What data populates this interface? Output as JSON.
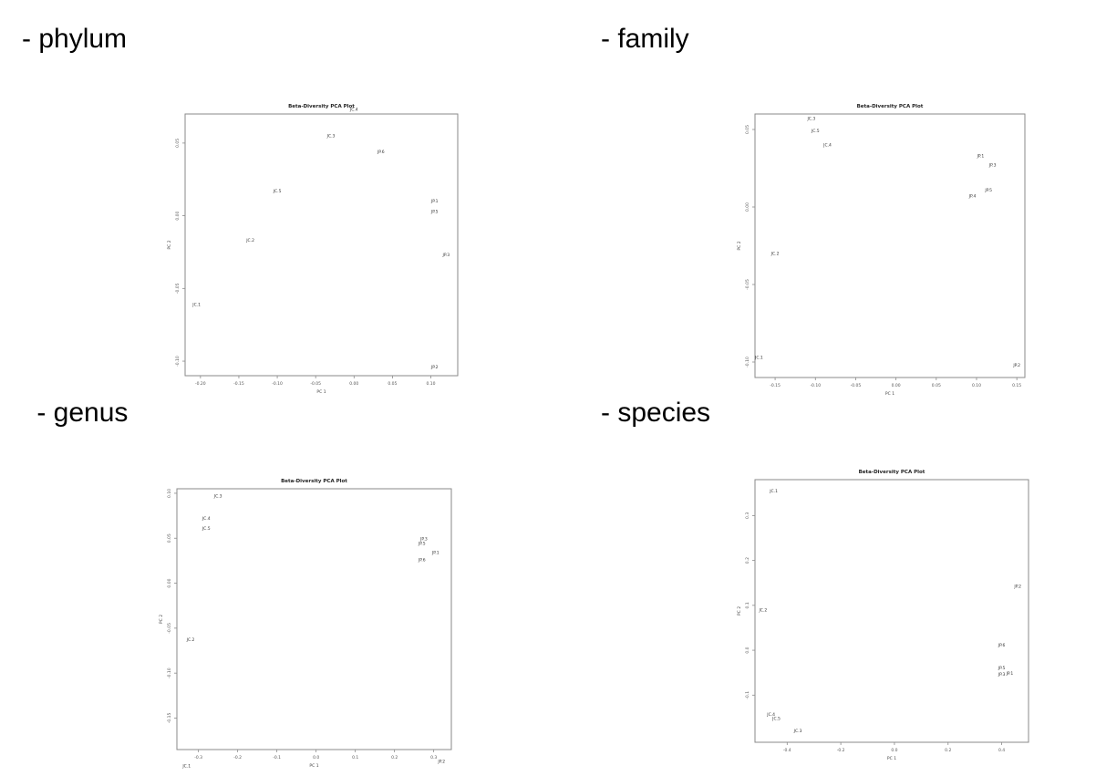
{
  "sections": {
    "phylum": "- phylum",
    "family": "- family",
    "genus": " - genus",
    "species": "- species"
  },
  "chart_data": [
    {
      "type": "scatter",
      "title": "Beta-Diversity PCA Plot",
      "xlabel": "PC 1",
      "ylabel": "PC 2",
      "xlim": [
        -0.22,
        0.135
      ],
      "ylim": [
        -0.11,
        0.07
      ],
      "xticks": [
        -0.2,
        -0.15,
        -0.1,
        -0.05,
        0.0,
        0.05,
        0.1
      ],
      "xtick_labels": [
        "-0.20",
        "-0.15",
        "-0.10",
        "-0.05",
        "0.00",
        "0.05",
        "0.10"
      ],
      "yticks": [
        -0.1,
        -0.05,
        0.0,
        0.05
      ],
      "ytick_labels": [
        "-0.10",
        "-0.05",
        "0.00",
        "0.05"
      ],
      "points": [
        {
          "label": "JC.4",
          "x": 0.0,
          "y": 0.073
        },
        {
          "label": "JC.3",
          "x": -0.03,
          "y": 0.055
        },
        {
          "label": "JP.6",
          "x": 0.035,
          "y": 0.044
        },
        {
          "label": "JC.5",
          "x": -0.1,
          "y": 0.017
        },
        {
          "label": "JP.1",
          "x": 0.105,
          "y": 0.01
        },
        {
          "label": "JP.5",
          "x": 0.105,
          "y": 0.003
        },
        {
          "label": "JC.2",
          "x": -0.135,
          "y": -0.017
        },
        {
          "label": "JP.3",
          "x": 0.12,
          "y": -0.027
        },
        {
          "label": "JC.1",
          "x": -0.205,
          "y": -0.061
        },
        {
          "label": "JP.2",
          "x": 0.105,
          "y": -0.104
        }
      ]
    },
    {
      "type": "scatter",
      "title": "Beta-Diversity PCA Plot",
      "xlabel": "PC 1",
      "ylabel": "PC 2",
      "xlim": [
        -0.175,
        0.16
      ],
      "ylim": [
        -0.11,
        0.06
      ],
      "xticks": [
        -0.15,
        -0.1,
        -0.05,
        0.0,
        0.05,
        0.1,
        0.15
      ],
      "xtick_labels": [
        "-0.15",
        "-0.10",
        "-0.05",
        "0.00",
        "0.05",
        "0.10",
        "0.15"
      ],
      "yticks": [
        -0.1,
        -0.05,
        0.0,
        0.05
      ],
      "ytick_labels": [
        "-0.10",
        "-0.05",
        "0.00",
        "0.05"
      ],
      "points": [
        {
          "label": "JC.3",
          "x": -0.105,
          "y": 0.057
        },
        {
          "label": "JC.5",
          "x": -0.1,
          "y": 0.049
        },
        {
          "label": "JC.4",
          "x": -0.085,
          "y": 0.04
        },
        {
          "label": "JP.1",
          "x": 0.105,
          "y": 0.033
        },
        {
          "label": "JP.3",
          "x": 0.12,
          "y": 0.027
        },
        {
          "label": "JP.5",
          "x": 0.115,
          "y": 0.011
        },
        {
          "label": "JP.4",
          "x": 0.095,
          "y": 0.007
        },
        {
          "label": "JC.2",
          "x": -0.15,
          "y": -0.03
        },
        {
          "label": "JC.1",
          "x": -0.17,
          "y": -0.097
        },
        {
          "label": "JP.2",
          "x": 0.15,
          "y": -0.102
        }
      ]
    },
    {
      "type": "scatter",
      "title": "Beta-Diversity PCA Plot",
      "xlabel": "PC 1",
      "ylabel": "PC 2",
      "xlim": [
        -0.355,
        0.345
      ],
      "ylim": [
        -0.185,
        0.105
      ],
      "xticks": [
        -0.3,
        -0.2,
        -0.1,
        0.0,
        0.1,
        0.2,
        0.3
      ],
      "xtick_labels": [
        "-0.3",
        "-0.2",
        "-0.1",
        "0.0",
        "0.1",
        "0.2",
        "0.3"
      ],
      "yticks": [
        -0.15,
        -0.1,
        -0.05,
        0.0,
        0.05,
        0.1
      ],
      "ytick_labels": [
        "-0.15",
        "-0.10",
        "-0.05",
        "0.00",
        "0.05",
        "0.10"
      ],
      "points": [
        {
          "label": "JC.3",
          "x": -0.25,
          "y": 0.097
        },
        {
          "label": "JC.4",
          "x": -0.28,
          "y": 0.072
        },
        {
          "label": "JC.5",
          "x": -0.28,
          "y": 0.061
        },
        {
          "label": "JP.3",
          "x": 0.275,
          "y": 0.049
        },
        {
          "label": "JP.5",
          "x": 0.27,
          "y": 0.044
        },
        {
          "label": "JP.1",
          "x": 0.305,
          "y": 0.034
        },
        {
          "label": "JP.6",
          "x": 0.27,
          "y": 0.026
        },
        {
          "label": "JC.2",
          "x": -0.32,
          "y": -0.063
        },
        {
          "label": "JC.1",
          "x": -0.33,
          "y": -0.203
        },
        {
          "label": "JP.2",
          "x": 0.32,
          "y": -0.198
        }
      ]
    },
    {
      "type": "scatter",
      "title": "Beta-Diversity PCA Plot",
      "xlabel": "PC 1",
      "ylabel": "PC 2",
      "xlim": [
        -0.52,
        0.5
      ],
      "ylim": [
        -0.205,
        0.38
      ],
      "xticks": [
        -0.4,
        -0.2,
        0.0,
        0.2,
        0.4
      ],
      "xtick_labels": [
        "-0.4",
        "-0.2",
        "0.0",
        "0.2",
        "0.4"
      ],
      "yticks": [
        -0.1,
        0.0,
        0.1,
        0.2,
        0.3
      ],
      "ytick_labels": [
        "-0.1",
        "0.0",
        "0.1",
        "0.2",
        "0.3"
      ],
      "points": [
        {
          "label": "JC.1",
          "x": -0.45,
          "y": 0.355
        },
        {
          "label": "JP.2",
          "x": 0.46,
          "y": 0.142
        },
        {
          "label": "JC.2",
          "x": -0.49,
          "y": 0.09
        },
        {
          "label": "JP.6",
          "x": 0.4,
          "y": 0.011
        },
        {
          "label": "JP.5",
          "x": 0.4,
          "y": -0.039
        },
        {
          "label": "JP.1",
          "x": 0.43,
          "y": -0.052
        },
        {
          "label": "JP.3",
          "x": 0.4,
          "y": -0.054
        },
        {
          "label": "JC.4",
          "x": -0.46,
          "y": -0.143
        },
        {
          "label": "JC.5",
          "x": -0.44,
          "y": -0.152
        },
        {
          "label": "JC.3",
          "x": -0.36,
          "y": -0.18
        }
      ]
    }
  ]
}
